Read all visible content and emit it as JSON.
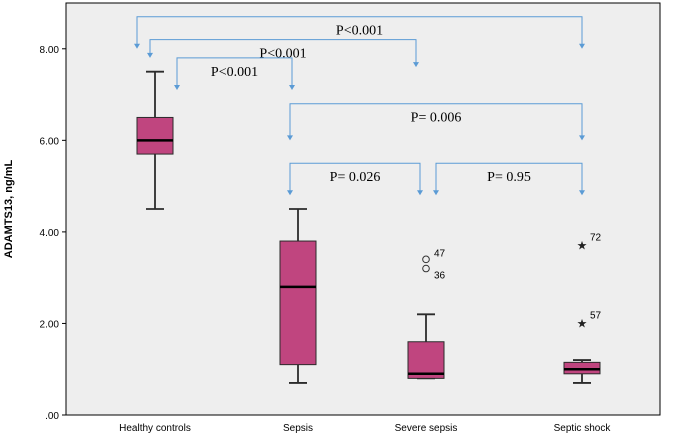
{
  "chart_data": {
    "type": "boxplot",
    "ylabel": "ADAMTS13, ng/mL",
    "ylim": [
      0,
      9
    ],
    "yticks": [
      {
        "value": 0,
        "label": ".00"
      },
      {
        "value": 2,
        "label": "2.00"
      },
      {
        "value": 4,
        "label": "4.00"
      },
      {
        "value": 6,
        "label": "6.00"
      },
      {
        "value": 8,
        "label": "8.00"
      }
    ],
    "grid": false,
    "categories": [
      "Healthy controls",
      "Sepsis",
      "Severe sepsis",
      "Septic shock"
    ],
    "boxes": [
      {
        "category": "Healthy controls",
        "min": 4.5,
        "q1": 5.7,
        "median": 6.0,
        "q3": 6.5,
        "max": 7.5,
        "outliers": []
      },
      {
        "category": "Sepsis",
        "min": 0.7,
        "q1": 1.1,
        "median": 2.8,
        "q3": 3.8,
        "max": 4.5,
        "outliers": []
      },
      {
        "category": "Severe sepsis",
        "min": 0.8,
        "q1": 0.8,
        "median": 0.9,
        "q3": 1.6,
        "max": 2.2,
        "outliers": [
          {
            "value": 3.4,
            "label": "47",
            "marker": "circle"
          },
          {
            "value": 3.2,
            "label": "36",
            "marker": "circle"
          }
        ]
      },
      {
        "category": "Septic shock",
        "min": 0.7,
        "q1": 0.9,
        "median": 1.0,
        "q3": 1.15,
        "max": 1.2,
        "outliers": [
          {
            "value": 3.7,
            "label": "72",
            "marker": "star"
          },
          {
            "value": 2.0,
            "label": "57",
            "marker": "star"
          }
        ]
      }
    ],
    "comparisons": [
      {
        "from": 0,
        "to": 3,
        "bracket_y": 8.7,
        "label": "P<0.001",
        "from_tip": 8.0,
        "to_tip": 8.0
      },
      {
        "from": 0,
        "to": 2,
        "bracket_y": 8.2,
        "label": "P<0.001",
        "from_tip": 7.8,
        "to_tip": 7.6
      },
      {
        "from": 0,
        "to": 1,
        "bracket_y": 7.8,
        "label": "P<0.001",
        "from_tip": 7.1,
        "to_tip": 7.1
      },
      {
        "from": 1,
        "to": 3,
        "bracket_y": 6.8,
        "label": "P= 0.006",
        "from_tip": 6.0,
        "to_tip": 6.0
      },
      {
        "from": 1,
        "to": 2,
        "bracket_y": 5.5,
        "label": "P= 0.026",
        "from_tip": 4.8,
        "to_tip": 4.8
      },
      {
        "from": 2,
        "to": 3,
        "bracket_y": 5.5,
        "label": "P= 0.95",
        "from_tip": 4.8,
        "to_tip": 4.8
      }
    ],
    "colors": {
      "box_fill": "#c0457f",
      "box_edge": "#2b2b2b",
      "bracket": "#5b9bd5",
      "plot_bg": "#eeeeee",
      "axis": "#000000"
    }
  }
}
